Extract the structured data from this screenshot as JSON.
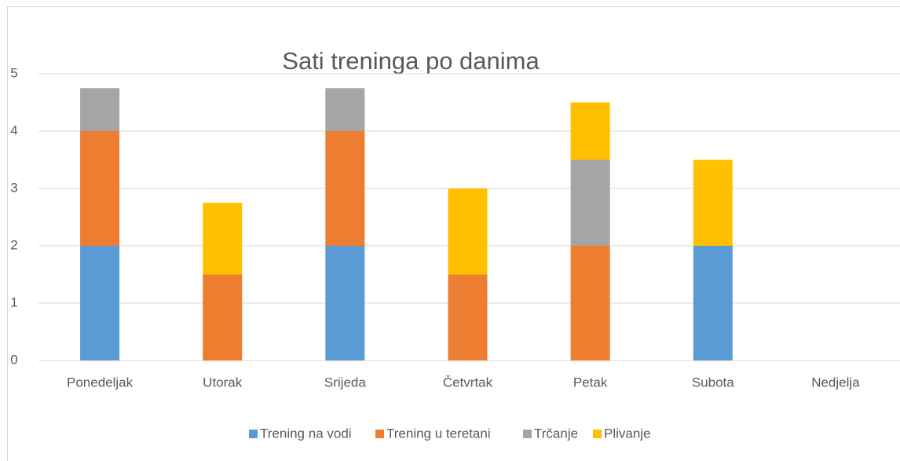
{
  "chart_data": {
    "type": "stacked_bar",
    "title": "Sati treninga po danima",
    "categories": [
      "Ponedeljak",
      "Utorak",
      "Srijeda",
      "Četvrtak",
      "Petak",
      "Subota",
      "Nedjelja"
    ],
    "series": [
      {
        "name": "Trening na vodi",
        "color": "#5b9bd5",
        "values": [
          2,
          0,
          2,
          0,
          0,
          2,
          0
        ]
      },
      {
        "name": "Trening u teretani",
        "color": "#ed7d31",
        "values": [
          2,
          1.5,
          2,
          1.5,
          2,
          0,
          0
        ]
      },
      {
        "name": "Trčanje",
        "color": "#a5a5a5",
        "values": [
          0.75,
          0,
          0.75,
          0,
          1.5,
          0,
          0
        ]
      },
      {
        "name": "Plivanje",
        "color": "#ffc000",
        "values": [
          0,
          1.25,
          0,
          1.5,
          1,
          1.5,
          0
        ]
      }
    ],
    "ylim": [
      0,
      5
    ],
    "yticks": [
      0,
      1,
      2,
      3,
      4,
      5
    ],
    "grid": true,
    "legend": "bottom"
  }
}
